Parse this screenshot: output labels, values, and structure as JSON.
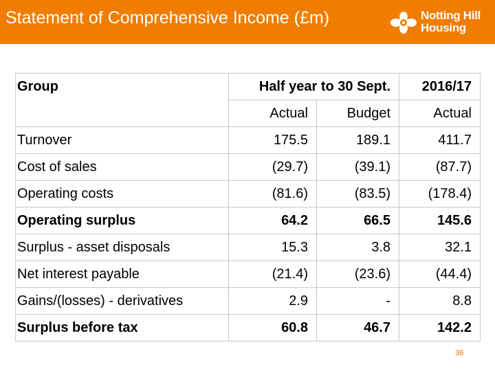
{
  "header": {
    "title": "Statement of Comprehensive Income (£m)",
    "logo_line1": "Notting Hill",
    "logo_line2": "Housing",
    "background_color": "#f07d00"
  },
  "table": {
    "group_label": "Group",
    "period_header": "Half year to 30 Sept.",
    "year_header": "2016/17",
    "sub_headers": [
      "Actual",
      "Budget",
      "Actual"
    ],
    "rows": [
      {
        "label": "Turnover",
        "values": [
          "175.5",
          "189.1",
          "411.7"
        ],
        "bold": false
      },
      {
        "label": "Cost of sales",
        "values": [
          "(29.7)",
          "(39.1)",
          "(87.7)"
        ],
        "bold": false
      },
      {
        "label": "Operating costs",
        "values": [
          "(81.6)",
          "(83.5)",
          "(178.4)"
        ],
        "bold": false
      },
      {
        "label": "Operating surplus",
        "values": [
          "64.2",
          "66.5",
          "145.6"
        ],
        "bold": true
      },
      {
        "label": "Surplus - asset disposals",
        "values": [
          "15.3",
          "3.8",
          "32.1"
        ],
        "bold": false
      },
      {
        "label": "Net interest payable",
        "values": [
          "(21.4)",
          "(23.6)",
          "(44.4)"
        ],
        "bold": false
      },
      {
        "label": "Gains/(losses) - derivatives",
        "values": [
          "2.9",
          "-",
          "8.8"
        ],
        "bold": false
      },
      {
        "label": "Surplus before tax",
        "values": [
          "60.8",
          "46.7",
          "142.2"
        ],
        "bold": true
      }
    ]
  },
  "footer": {
    "page_number": "36"
  }
}
